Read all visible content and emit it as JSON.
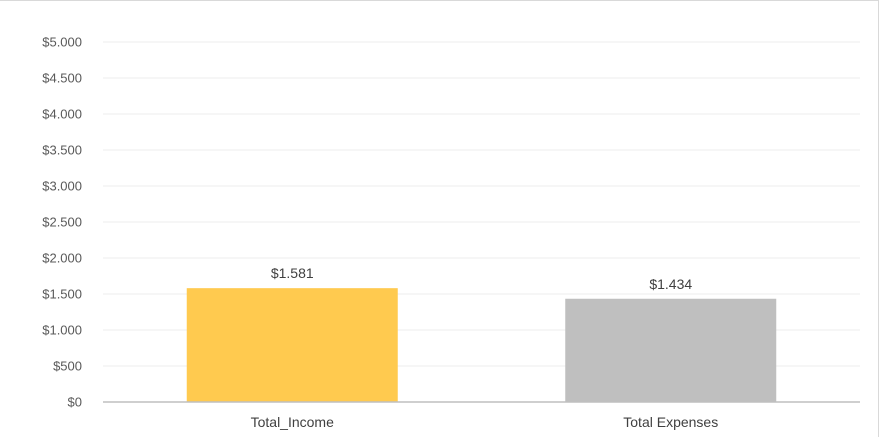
{
  "chart_data": {
    "type": "bar",
    "categories": [
      "Total_Income",
      "Total Expenses"
    ],
    "values": [
      1581,
      1434
    ],
    "data_labels": [
      "$1.581",
      "$1.434"
    ],
    "bar_colors": [
      "#FFCA4F",
      "#BFBFBF"
    ],
    "y_ticks": [
      0,
      500,
      1000,
      1500,
      2000,
      2500,
      3000,
      3500,
      4000,
      4500,
      5000
    ],
    "y_tick_labels": [
      "$0",
      "$500",
      "$1.000",
      "$1.500",
      "$2.000",
      "$2.500",
      "$3.000",
      "$3.500",
      "$4.000",
      "$4.500",
      "$5.000"
    ],
    "ylim": [
      0,
      5000
    ],
    "grid": true,
    "legend": "none",
    "title": "",
    "xlabel": "",
    "ylabel": ""
  }
}
